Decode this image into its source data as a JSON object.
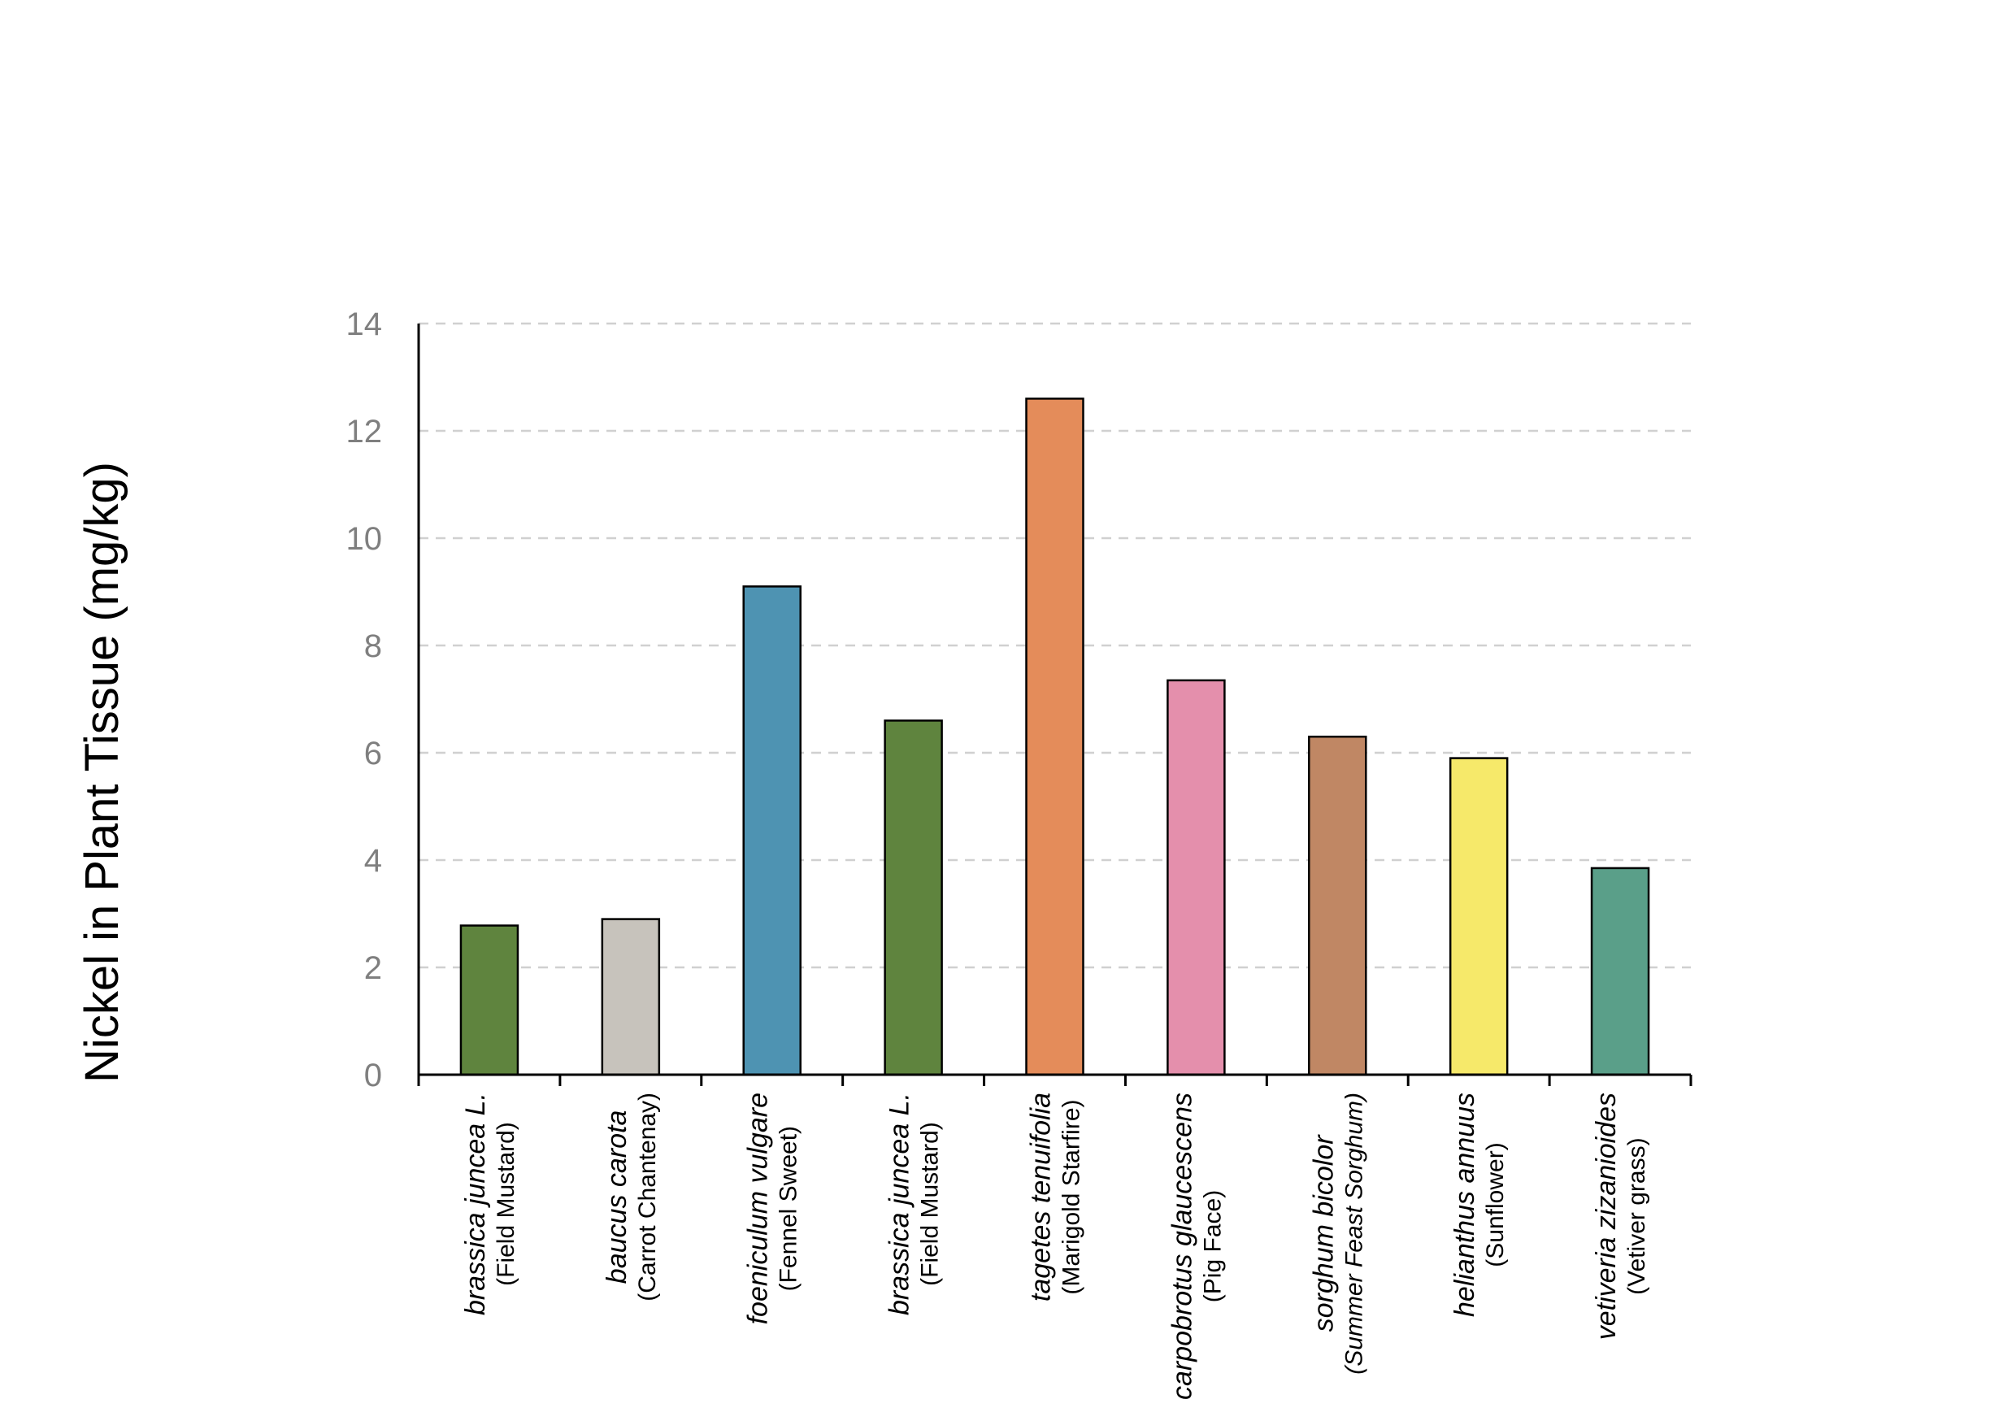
{
  "chart_data": {
    "type": "bar",
    "title": "",
    "xlabel": "",
    "ylabel": "Nickel in Plant Tissue (mg/kg)",
    "ylim": [
      0,
      14
    ],
    "yticks": [
      "0",
      "2",
      "4",
      "6",
      "8",
      "10",
      "12",
      "14"
    ],
    "grid": "horizontal dashed",
    "legend": "none",
    "categories": [
      {
        "scientific": "brassica juncea L.",
        "common": "(Field Mustard)",
        "common_italic": false
      },
      {
        "scientific": "baucus carota",
        "common": "(Carrot Chantenay)",
        "common_italic": false
      },
      {
        "scientific": "foeniculum vulgare",
        "common": "(Fennel Sweet)",
        "common_italic": false
      },
      {
        "scientific": "brassica juncea L.",
        "common": "(Field Mustard)",
        "common_italic": false
      },
      {
        "scientific": "tagetes tenuifolia",
        "common": "(Marigold Starfire)",
        "common_italic": false
      },
      {
        "scientific": "carpobrotus glaucescens",
        "common": "(Pig Face)",
        "common_italic": false
      },
      {
        "scientific": "sorghum bicolor",
        "common": "(Summer Feast Sorghum)",
        "common_italic": true
      },
      {
        "scientific": "helianthus annuus",
        "common": "(Sunflower)",
        "common_italic": false
      },
      {
        "scientific": "vetiveria zizanioides",
        "common": "(Vetiver grass)",
        "common_italic": false
      }
    ],
    "values": [
      2.78,
      2.9,
      9.1,
      6.6,
      12.6,
      7.35,
      6.3,
      5.9,
      3.85
    ],
    "colors": [
      "#5f843e",
      "#c7c3bc",
      "#4e93b2",
      "#5f843e",
      "#e48c5a",
      "#e48fac",
      "#c08764",
      "#f6e96a",
      "#5a9f89"
    ]
  }
}
